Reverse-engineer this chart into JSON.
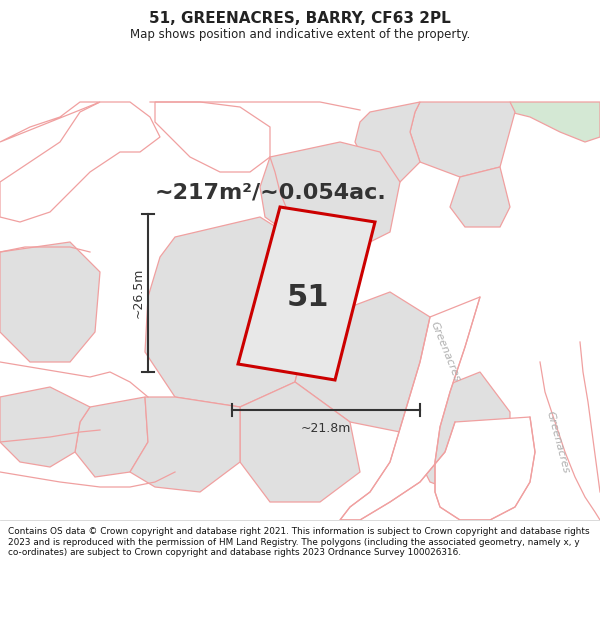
{
  "title": "51, GREENACRES, BARRY, CF63 2PL",
  "subtitle": "Map shows position and indicative extent of the property.",
  "area_text": "~217m²/~0.054ac.",
  "width_label": "~21.8m",
  "height_label": "~26.5m",
  "property_number": "51",
  "street_label_1": "Greenacres",
  "street_label_2": "Greenacres",
  "footer_text": "Contains OS data © Crown copyright and database right 2021. This information is subject to Crown copyright and database rights 2023 and is reproduced with the permission of HM Land Registry. The polygons (including the associated geometry, namely x, y co-ordinates) are subject to Crown copyright and database rights 2023 Ordnance Survey 100026316.",
  "map_bg": "#ffffff",
  "gray_fill": "#e0e0e0",
  "green_fill": "#d4e8d4",
  "pink": "#f0a0a0",
  "red": "#cc0000",
  "dark": "#333333",
  "gray_text": "#b0b0b0",
  "title_color": "#222222",
  "footer_color": "#111111"
}
